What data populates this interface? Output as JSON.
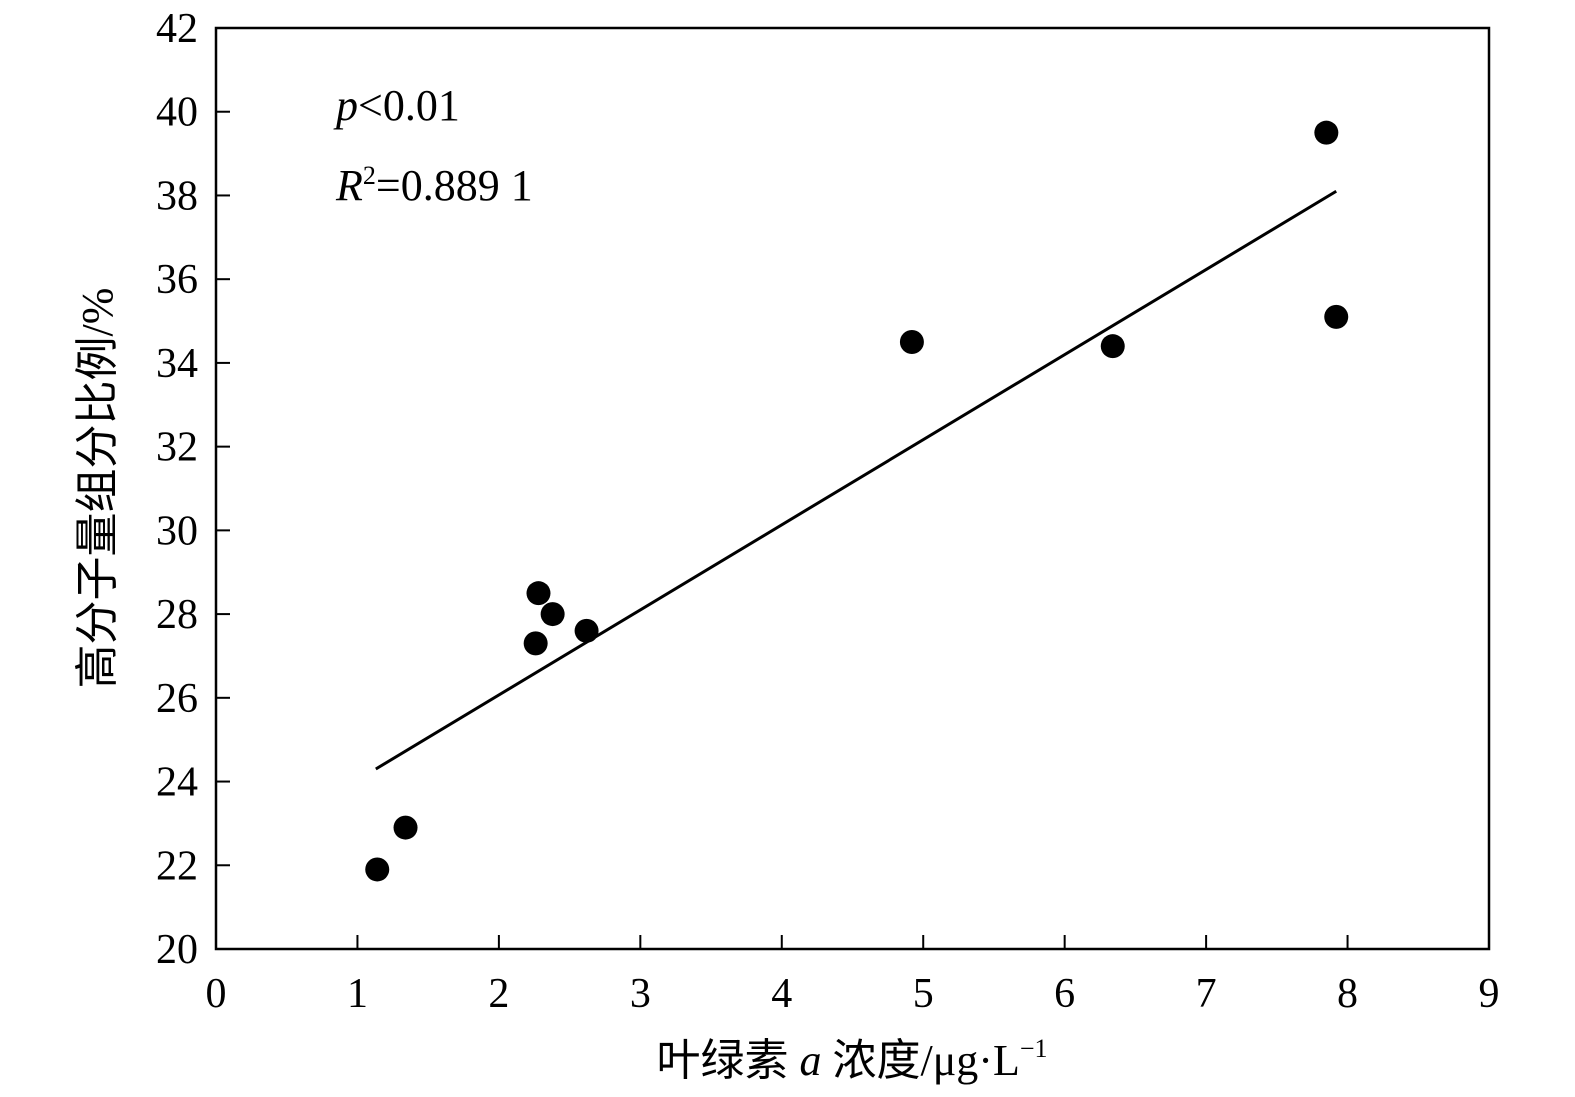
{
  "chart_data": {
    "type": "scatter",
    "title": "",
    "xlabel": {
      "prefix": "叶绿素 ",
      "variable": "a",
      "suffix": " 浓度/μg·L",
      "superscript": "−1"
    },
    "ylabel": "高分子量组分比例/%",
    "xlim": [
      0,
      9
    ],
    "ylim": [
      20,
      42
    ],
    "xticks": [
      0,
      1,
      2,
      3,
      4,
      5,
      6,
      7,
      8,
      9
    ],
    "yticks": [
      20,
      22,
      24,
      26,
      28,
      30,
      32,
      34,
      36,
      38,
      40,
      42
    ],
    "grid": false,
    "points": [
      {
        "x": 1.14,
        "y": 21.9
      },
      {
        "x": 1.34,
        "y": 22.9
      },
      {
        "x": 2.26,
        "y": 27.3
      },
      {
        "x": 2.28,
        "y": 28.5
      },
      {
        "x": 2.38,
        "y": 28.0
      },
      {
        "x": 2.62,
        "y": 27.6
      },
      {
        "x": 4.92,
        "y": 34.5
      },
      {
        "x": 6.34,
        "y": 34.4
      },
      {
        "x": 7.85,
        "y": 39.5
      },
      {
        "x": 7.92,
        "y": 35.1
      }
    ],
    "trendline": {
      "x": [
        1.13,
        7.92
      ],
      "y": [
        24.3,
        38.1
      ]
    },
    "annotations": {
      "p_var": "p",
      "p_text": "<0.01",
      "r_var": "R",
      "r_sup": "2",
      "r_text": "=0.889 1"
    }
  }
}
